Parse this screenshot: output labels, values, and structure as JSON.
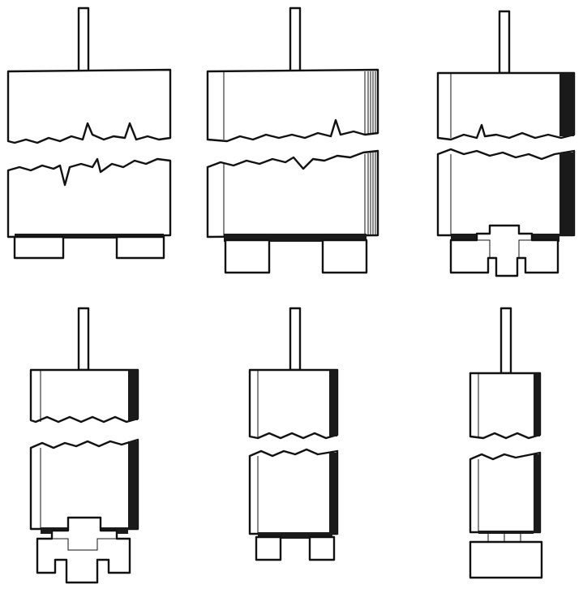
{
  "figure": {
    "panels": [
      {
        "id": "a",
        "bottom": "two-tenons-flush"
      },
      {
        "id": "b",
        "bottom": "two-tenons-chamfered"
      },
      {
        "id": "c",
        "bottom": "dovetail-notch"
      },
      {
        "id": "d",
        "bottom": "stepped-dovetail"
      },
      {
        "id": "e",
        "bottom": "two-tenons-narrow"
      },
      {
        "id": "f",
        "bottom": "solid-block"
      }
    ],
    "colors": {
      "ink": "#111111",
      "paper": "#ffffff"
    }
  }
}
